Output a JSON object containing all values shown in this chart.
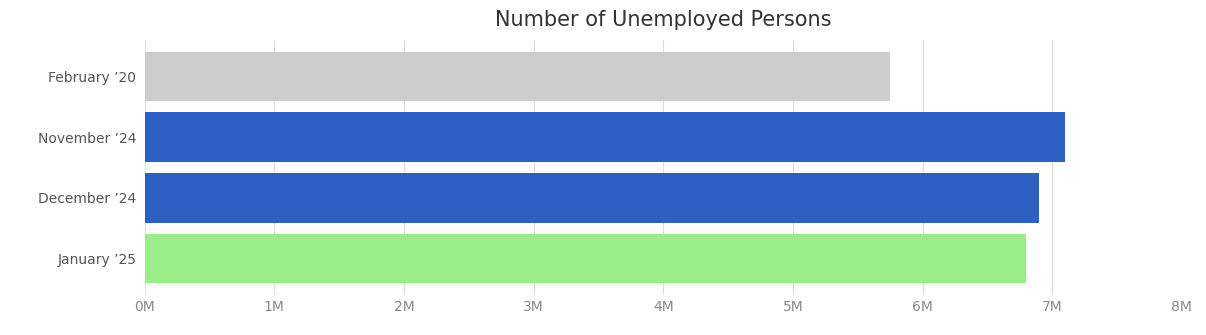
{
  "title": "Number of Unemployed Persons",
  "categories": [
    "January ’25",
    "December ’24",
    "November ’24",
    "February ’20"
  ],
  "values": [
    6800000,
    6900000,
    7100000,
    5750000
  ],
  "bar_colors": [
    "#99ee88",
    "#2e5fc2",
    "#2e5fc2",
    "#cccccc"
  ],
  "xlim": [
    0,
    8000000
  ],
  "xticks": [
    0,
    1000000,
    2000000,
    3000000,
    4000000,
    5000000,
    6000000,
    7000000,
    8000000
  ],
  "xtick_labels": [
    "0M",
    "1M",
    "2M",
    "3M",
    "4M",
    "5M",
    "6M",
    "7M",
    "8M"
  ],
  "title_fontsize": 15,
  "tick_fontsize": 10,
  "label_fontsize": 10,
  "background_color": "#ffffff",
  "grid_color": "#dddddd",
  "bar_height": 0.82
}
